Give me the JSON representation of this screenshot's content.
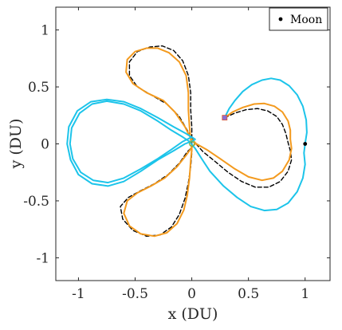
{
  "chart_data": {
    "type": "line",
    "xlabel": "x (DU)",
    "ylabel": "y (DU)",
    "xlim": [
      -1.2,
      1.22
    ],
    "ylim": [
      -1.2,
      1.2
    ],
    "xticks": [
      "-1",
      "-0.5",
      "0",
      "0.5",
      "1"
    ],
    "xtick_values": [
      -1,
      -0.5,
      0,
      0.5,
      1
    ],
    "yticks": [
      "1",
      "0.5",
      "0",
      "-0.5",
      "-1"
    ],
    "ytick_values": [
      1,
      0.5,
      0,
      -0.5,
      -1
    ],
    "grid": false,
    "legend_position": "top-right",
    "legend": [
      {
        "label": "Moon",
        "marker": "dot",
        "color": "#000000"
      }
    ],
    "moon": {
      "x": 1.0,
      "y": 0.0,
      "color": "#000000"
    },
    "start_marker": {
      "x": 0.29,
      "y": 0.23,
      "color": "#8a6fd1"
    },
    "series": [
      {
        "style": "solid",
        "color": "#1cc4ea",
        "points": [
          [
            0.29,
            0.23
          ],
          [
            0.33,
            0.31
          ],
          [
            0.38,
            0.38
          ],
          [
            0.45,
            0.46
          ],
          [
            0.53,
            0.52
          ],
          [
            0.62,
            0.56
          ],
          [
            0.7,
            0.575
          ],
          [
            0.78,
            0.56
          ],
          [
            0.86,
            0.51
          ],
          [
            0.93,
            0.43
          ],
          [
            0.98,
            0.33
          ],
          [
            1.01,
            0.21
          ],
          [
            1.015,
            0.1
          ],
          [
            1.0,
            0.0
          ],
          [
            0.99,
            -0.08
          ],
          [
            1.0,
            -0.18
          ],
          [
            0.98,
            -0.3
          ],
          [
            0.93,
            -0.42
          ],
          [
            0.85,
            -0.52
          ],
          [
            0.75,
            -0.575
          ],
          [
            0.64,
            -0.585
          ],
          [
            0.52,
            -0.55
          ],
          [
            0.4,
            -0.47
          ],
          [
            0.28,
            -0.37
          ],
          [
            0.16,
            -0.24
          ],
          [
            0.08,
            -0.12
          ],
          [
            0.03,
            -0.04
          ],
          [
            -0.02,
            0.02
          ],
          [
            -0.08,
            0.06
          ],
          [
            -0.18,
            0.12
          ],
          [
            -0.3,
            0.2
          ],
          [
            -0.45,
            0.29
          ],
          [
            -0.6,
            0.35
          ],
          [
            -0.75,
            0.375
          ],
          [
            -0.88,
            0.35
          ],
          [
            -0.99,
            0.27
          ],
          [
            -1.06,
            0.14
          ],
          [
            -1.075,
            0.0
          ],
          [
            -1.05,
            -0.13
          ],
          [
            -0.98,
            -0.25
          ],
          [
            -0.87,
            -0.32
          ],
          [
            -0.74,
            -0.34
          ],
          [
            -0.6,
            -0.3
          ],
          [
            -0.45,
            -0.22
          ],
          [
            -0.3,
            -0.13
          ],
          [
            -0.18,
            -0.05
          ],
          [
            -0.08,
            0.02
          ],
          [
            0.0,
            0.06
          ],
          [
            0.03,
            0.04
          ],
          [
            -0.05,
            0.09
          ],
          [
            -0.16,
            0.15
          ],
          [
            -0.3,
            0.23
          ],
          [
            -0.45,
            0.31
          ],
          [
            -0.6,
            0.37
          ],
          [
            -0.75,
            0.39
          ],
          [
            -0.89,
            0.37
          ],
          [
            -1.01,
            0.29
          ],
          [
            -1.085,
            0.15
          ],
          [
            -1.1,
            0.0
          ],
          [
            -1.07,
            -0.14
          ],
          [
            -1.0,
            -0.27
          ],
          [
            -0.88,
            -0.35
          ],
          [
            -0.74,
            -0.37
          ],
          [
            -0.6,
            -0.33
          ],
          [
            -0.45,
            -0.24
          ],
          [
            -0.3,
            -0.14
          ],
          [
            -0.16,
            -0.06
          ],
          [
            -0.06,
            0.0
          ],
          [
            0.02,
            0.03
          ]
        ]
      },
      {
        "style": "solid",
        "color": "#f39a1e",
        "points": [
          [
            0.29,
            0.23
          ],
          [
            0.36,
            0.28
          ],
          [
            0.45,
            0.32
          ],
          [
            0.55,
            0.35
          ],
          [
            0.64,
            0.355
          ],
          [
            0.73,
            0.33
          ],
          [
            0.8,
            0.28
          ],
          [
            0.85,
            0.2
          ],
          [
            0.87,
            0.12
          ],
          [
            0.87,
            0.04
          ],
          [
            0.88,
            -0.04
          ],
          [
            0.86,
            -0.14
          ],
          [
            0.8,
            -0.24
          ],
          [
            0.72,
            -0.3
          ],
          [
            0.62,
            -0.32
          ],
          [
            0.5,
            -0.29
          ],
          [
            0.38,
            -0.22
          ],
          [
            0.25,
            -0.13
          ],
          [
            0.13,
            -0.05
          ],
          [
            0.04,
            0.0
          ],
          [
            -0.01,
            0.05
          ],
          [
            -0.06,
            0.15
          ],
          [
            -0.15,
            0.28
          ],
          [
            -0.25,
            0.38
          ],
          [
            -0.4,
            0.45
          ],
          [
            -0.52,
            0.53
          ],
          [
            -0.58,
            0.63
          ],
          [
            -0.57,
            0.74
          ],
          [
            -0.5,
            0.81
          ],
          [
            -0.4,
            0.84
          ],
          [
            -0.3,
            0.84
          ],
          [
            -0.2,
            0.8
          ],
          [
            -0.11,
            0.72
          ],
          [
            -0.05,
            0.6
          ],
          [
            -0.03,
            0.45
          ],
          [
            -0.03,
            0.3
          ],
          [
            -0.02,
            0.15
          ],
          [
            -0.01,
            0.04
          ],
          [
            0.0,
            -0.05
          ],
          [
            -0.01,
            -0.15
          ],
          [
            -0.02,
            -0.3
          ],
          [
            -0.04,
            -0.45
          ],
          [
            -0.07,
            -0.58
          ],
          [
            -0.13,
            -0.7
          ],
          [
            -0.22,
            -0.78
          ],
          [
            -0.33,
            -0.81
          ],
          [
            -0.45,
            -0.79
          ],
          [
            -0.55,
            -0.72
          ],
          [
            -0.6,
            -0.61
          ],
          [
            -0.57,
            -0.5
          ],
          [
            -0.48,
            -0.43
          ],
          [
            -0.36,
            -0.37
          ],
          [
            -0.24,
            -0.3
          ],
          [
            -0.13,
            -0.2
          ],
          [
            -0.05,
            -0.1
          ],
          [
            0.0,
            -0.03
          ],
          [
            0.03,
            0.0
          ]
        ]
      },
      {
        "style": "dashed",
        "color": "#000000",
        "points": [
          [
            0.29,
            0.23
          ],
          [
            0.38,
            0.27
          ],
          [
            0.48,
            0.3
          ],
          [
            0.58,
            0.31
          ],
          [
            0.67,
            0.29
          ],
          [
            0.75,
            0.24
          ],
          [
            0.8,
            0.17
          ],
          [
            0.83,
            0.09
          ],
          [
            0.85,
            0.01
          ],
          [
            0.87,
            -0.06
          ],
          [
            0.88,
            -0.14
          ],
          [
            0.85,
            -0.24
          ],
          [
            0.78,
            -0.33
          ],
          [
            0.68,
            -0.38
          ],
          [
            0.56,
            -0.38
          ],
          [
            0.44,
            -0.33
          ],
          [
            0.32,
            -0.25
          ],
          [
            0.2,
            -0.15
          ],
          [
            0.1,
            -0.07
          ],
          [
            0.02,
            0.02
          ],
          [
            -0.04,
            0.12
          ],
          [
            -0.11,
            0.24
          ],
          [
            -0.22,
            0.35
          ],
          [
            -0.36,
            0.43
          ],
          [
            -0.48,
            0.5
          ],
          [
            -0.55,
            0.6
          ],
          [
            -0.55,
            0.72
          ],
          [
            -0.48,
            0.81
          ],
          [
            -0.37,
            0.85
          ],
          [
            -0.26,
            0.86
          ],
          [
            -0.16,
            0.82
          ],
          [
            -0.08,
            0.73
          ],
          [
            -0.03,
            0.6
          ],
          [
            -0.01,
            0.45
          ],
          [
            -0.01,
            0.3
          ],
          [
            0.0,
            0.15
          ],
          [
            0.0,
            0.03
          ],
          [
            0.0,
            -0.08
          ],
          [
            -0.01,
            -0.2
          ],
          [
            -0.03,
            -0.34
          ],
          [
            -0.06,
            -0.48
          ],
          [
            -0.11,
            -0.62
          ],
          [
            -0.18,
            -0.73
          ],
          [
            -0.28,
            -0.8
          ],
          [
            -0.4,
            -0.81
          ],
          [
            -0.52,
            -0.76
          ],
          [
            -0.61,
            -0.66
          ],
          [
            -0.63,
            -0.55
          ],
          [
            -0.56,
            -0.47
          ],
          [
            -0.45,
            -0.41
          ],
          [
            -0.33,
            -0.35
          ],
          [
            -0.21,
            -0.27
          ],
          [
            -0.11,
            -0.17
          ],
          [
            -0.04,
            -0.07
          ],
          [
            0.01,
            -0.02
          ]
        ]
      }
    ]
  }
}
